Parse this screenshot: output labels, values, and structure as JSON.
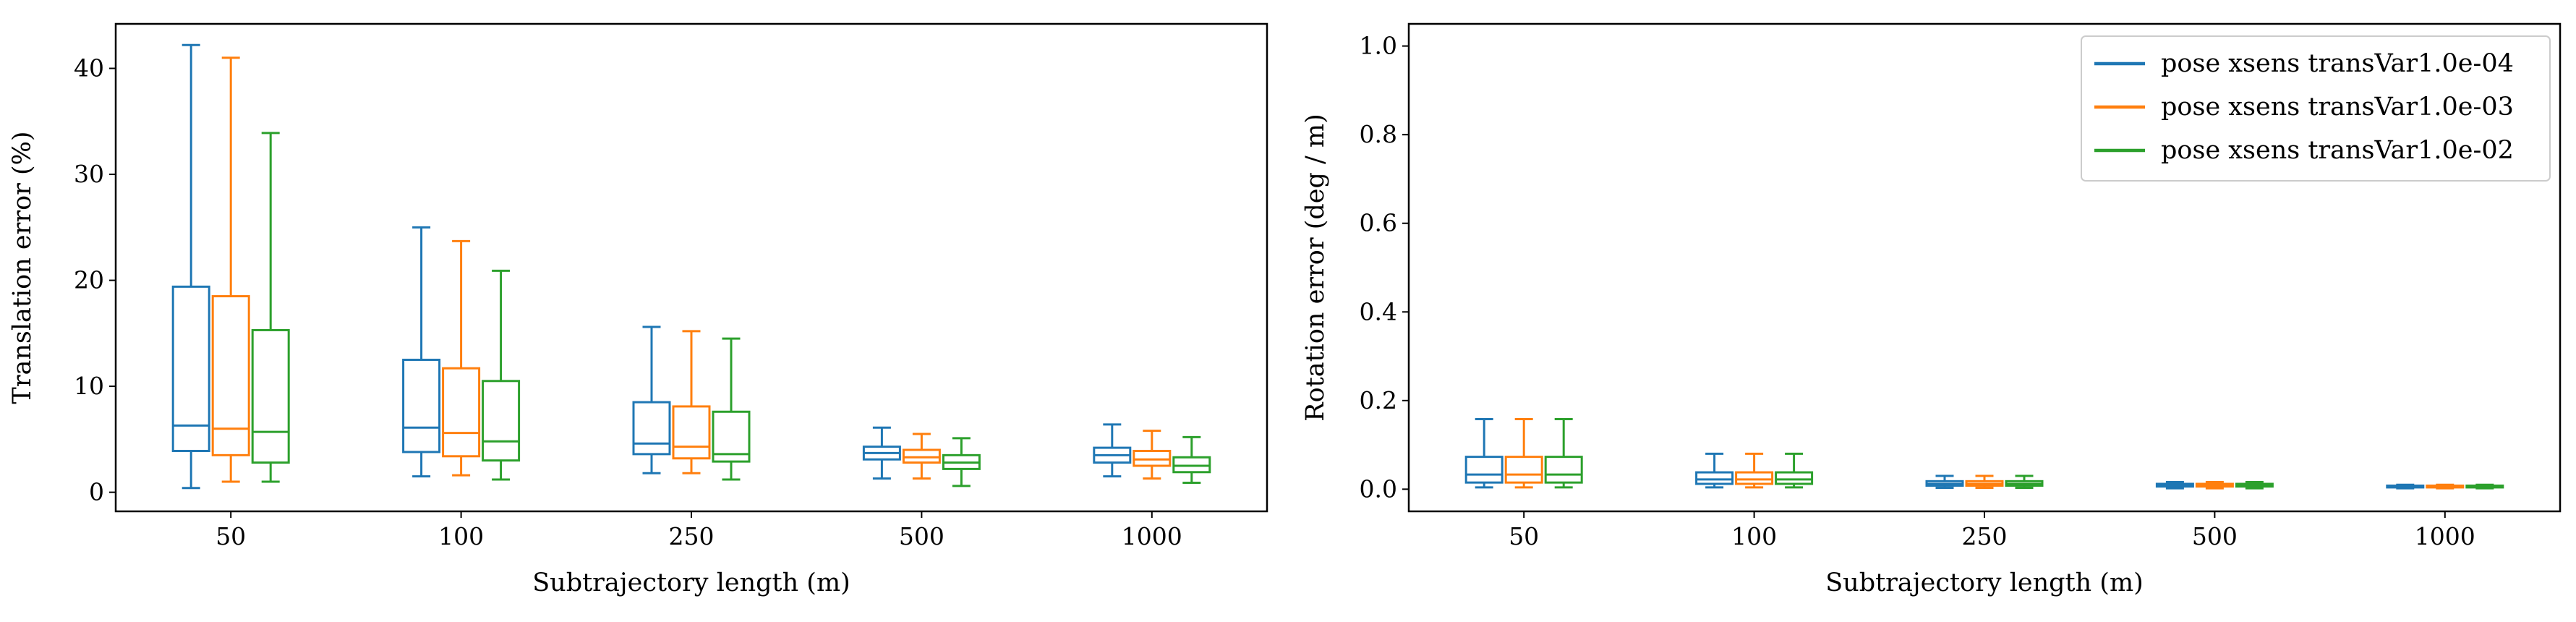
{
  "colors": {
    "s1": "#1f77b4",
    "s2": "#ff7f0e",
    "s3": "#2ca02c"
  },
  "legend": [
    {
      "label": "pose xsens transVar1.0e-04",
      "color": "#1f77b4"
    },
    {
      "label": "pose xsens transVar1.0e-03",
      "color": "#ff7f0e"
    },
    {
      "label": "pose xsens transVar1.0e-02",
      "color": "#2ca02c"
    }
  ],
  "chart_data": [
    {
      "type": "box",
      "xlabel": "Subtrajectory length (m)",
      "ylabel": "Translation error (%)",
      "categories": [
        "50",
        "100",
        "250",
        "500",
        "1000"
      ],
      "ylim": [
        -1.8,
        44.2
      ],
      "yticks": [
        0,
        10,
        20,
        30,
        40
      ],
      "series": [
        {
          "name": "pose xsens transVar1.0e-04",
          "boxes": [
            {
              "whislo": 0.4,
              "q1": 3.9,
              "med": 6.3,
              "q3": 19.4,
              "whishi": 42.2
            },
            {
              "whislo": 1.5,
              "q1": 3.8,
              "med": 6.1,
              "q3": 12.5,
              "whishi": 25.0
            },
            {
              "whislo": 1.8,
              "q1": 3.6,
              "med": 4.6,
              "q3": 8.5,
              "whishi": 15.6
            },
            {
              "whislo": 1.3,
              "q1": 3.1,
              "med": 3.7,
              "q3": 4.3,
              "whishi": 6.1
            },
            {
              "whislo": 1.5,
              "q1": 2.8,
              "med": 3.5,
              "q3": 4.2,
              "whishi": 6.4
            }
          ]
        },
        {
          "name": "pose xsens transVar1.0e-03",
          "boxes": [
            {
              "whislo": 1.0,
              "q1": 3.5,
              "med": 6.0,
              "q3": 18.5,
              "whishi": 41.0
            },
            {
              "whislo": 1.6,
              "q1": 3.4,
              "med": 5.6,
              "q3": 11.7,
              "whishi": 23.7
            },
            {
              "whislo": 1.8,
              "q1": 3.2,
              "med": 4.3,
              "q3": 8.1,
              "whishi": 15.2
            },
            {
              "whislo": 1.3,
              "q1": 2.8,
              "med": 3.3,
              "q3": 4.0,
              "whishi": 5.5
            },
            {
              "whislo": 1.3,
              "q1": 2.5,
              "med": 3.1,
              "q3": 3.9,
              "whishi": 5.8
            }
          ]
        },
        {
          "name": "pose xsens transVar1.0e-02",
          "boxes": [
            {
              "whislo": 1.0,
              "q1": 2.8,
              "med": 5.7,
              "q3": 15.3,
              "whishi": 33.9
            },
            {
              "whislo": 1.2,
              "q1": 3.0,
              "med": 4.8,
              "q3": 10.5,
              "whishi": 20.9
            },
            {
              "whislo": 1.2,
              "q1": 2.9,
              "med": 3.6,
              "q3": 7.6,
              "whishi": 14.5
            },
            {
              "whislo": 0.6,
              "q1": 2.2,
              "med": 2.8,
              "q3": 3.5,
              "whishi": 5.1
            },
            {
              "whislo": 0.9,
              "q1": 1.9,
              "med": 2.5,
              "q3": 3.3,
              "whishi": 5.2
            }
          ]
        }
      ]
    },
    {
      "type": "box",
      "xlabel": "Subtrajectory length (m)",
      "ylabel": "Rotation error (deg / m)",
      "categories": [
        "50",
        "100",
        "250",
        "500",
        "1000"
      ],
      "ylim": [
        -0.05,
        1.05
      ],
      "yticks": [
        "0.0",
        "0.2",
        "0.4",
        "0.6",
        "0.8",
        "1.0"
      ],
      "series": [
        {
          "name": "pose xsens transVar1.0e-04",
          "boxes": [
            {
              "whislo": 0.004,
              "q1": 0.015,
              "med": 0.033,
              "q3": 0.073,
              "whishi": 0.158
            },
            {
              "whislo": 0.004,
              "q1": 0.012,
              "med": 0.022,
              "q3": 0.038,
              "whishi": 0.08
            },
            {
              "whislo": 0.003,
              "q1": 0.008,
              "med": 0.012,
              "q3": 0.018,
              "whishi": 0.03
            },
            {
              "whislo": 0.002,
              "q1": 0.006,
              "med": 0.009,
              "q3": 0.012,
              "whishi": 0.016
            },
            {
              "whislo": 0.002,
              "q1": 0.004,
              "med": 0.006,
              "q3": 0.008,
              "whishi": 0.01
            }
          ]
        },
        {
          "name": "pose xsens transVar1.0e-03",
          "boxes": [
            {
              "whislo": 0.004,
              "q1": 0.015,
              "med": 0.033,
              "q3": 0.073,
              "whishi": 0.158
            },
            {
              "whislo": 0.004,
              "q1": 0.012,
              "med": 0.022,
              "q3": 0.038,
              "whishi": 0.08
            },
            {
              "whislo": 0.003,
              "q1": 0.008,
              "med": 0.012,
              "q3": 0.018,
              "whishi": 0.03
            },
            {
              "whislo": 0.002,
              "q1": 0.006,
              "med": 0.009,
              "q3": 0.012,
              "whishi": 0.016
            },
            {
              "whislo": 0.002,
              "q1": 0.004,
              "med": 0.006,
              "q3": 0.008,
              "whishi": 0.01
            }
          ]
        },
        {
          "name": "pose xsens transVar1.0e-02",
          "boxes": [
            {
              "whislo": 0.004,
              "q1": 0.015,
              "med": 0.033,
              "q3": 0.073,
              "whishi": 0.158
            },
            {
              "whislo": 0.004,
              "q1": 0.012,
              "med": 0.022,
              "q3": 0.038,
              "whishi": 0.08
            },
            {
              "whislo": 0.003,
              "q1": 0.008,
              "med": 0.012,
              "q3": 0.018,
              "whishi": 0.03
            },
            {
              "whislo": 0.002,
              "q1": 0.006,
              "med": 0.009,
              "q3": 0.012,
              "whishi": 0.016
            },
            {
              "whislo": 0.002,
              "q1": 0.004,
              "med": 0.006,
              "q3": 0.008,
              "whishi": 0.01
            }
          ]
        }
      ]
    }
  ]
}
